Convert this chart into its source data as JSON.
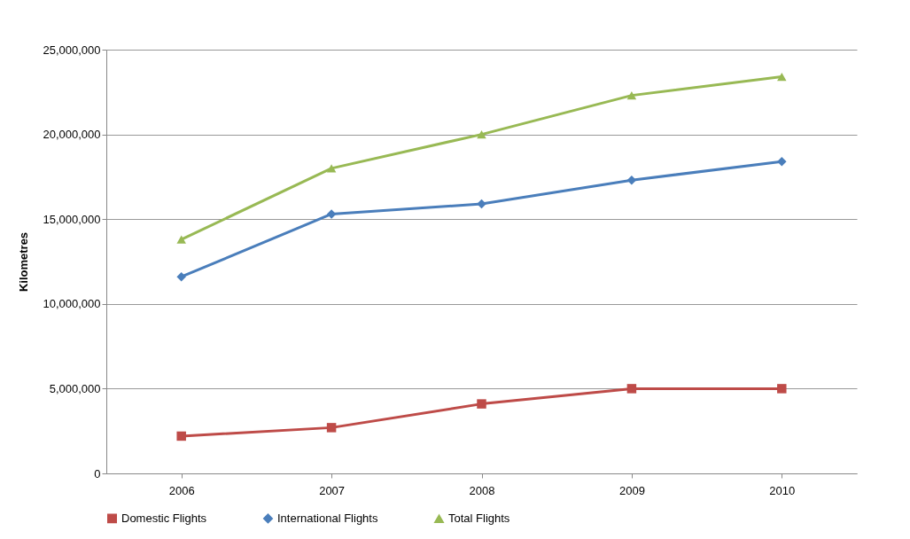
{
  "chart_data": {
    "type": "line",
    "ylabel": "Kilometres",
    "categories": [
      "2006",
      "2007",
      "2008",
      "2009",
      "2010"
    ],
    "series": [
      {
        "name": "Domestic Flights",
        "color": "#be4b48",
        "marker": "square",
        "values": [
          2200000,
          2700000,
          4100000,
          5000000,
          5000000
        ]
      },
      {
        "name": "International Flights",
        "color": "#4a7ebb",
        "marker": "diamond",
        "values": [
          11600000,
          15300000,
          15900000,
          17300000,
          18400000
        ]
      },
      {
        "name": "Total Flights",
        "color": "#98b954",
        "marker": "triangle",
        "values": [
          13800000,
          18000000,
          20000000,
          22300000,
          23400000
        ]
      }
    ],
    "ylim": [
      0,
      25000000
    ],
    "yticks": [
      0,
      {
        "value": 5000000,
        "label": "5,000,000"
      },
      {
        "value": 10000000,
        "label": "10,000,000"
      },
      {
        "value": 15000000,
        "label": "15,000,000"
      },
      {
        "value": 20000000,
        "label": "20,000,000"
      },
      {
        "value": 25000000,
        "label": "25,000,000"
      }
    ],
    "grid": "y",
    "legend": "bottom",
    "line_style": "solid"
  }
}
